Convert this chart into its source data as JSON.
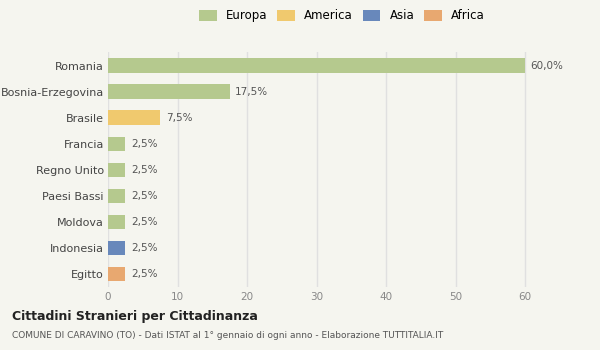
{
  "categories": [
    "Romania",
    "Bosnia-Erzegovina",
    "Brasile",
    "Francia",
    "Regno Unito",
    "Paesi Bassi",
    "Moldova",
    "Indonesia",
    "Egitto"
  ],
  "values": [
    60.0,
    17.5,
    7.5,
    2.5,
    2.5,
    2.5,
    2.5,
    2.5,
    2.5
  ],
  "bar_colors": [
    "#b5c98e",
    "#b5c98e",
    "#f0c96e",
    "#b5c98e",
    "#b5c98e",
    "#b5c98e",
    "#b5c98e",
    "#6888bb",
    "#e8a870"
  ],
  "labels": [
    "60,0%",
    "17,5%",
    "7,5%",
    "2,5%",
    "2,5%",
    "2,5%",
    "2,5%",
    "2,5%",
    "2,5%"
  ],
  "legend_labels": [
    "Europa",
    "America",
    "Asia",
    "Africa"
  ],
  "legend_colors": [
    "#b5c98e",
    "#f0c96e",
    "#6888bb",
    "#e8a870"
  ],
  "xlim": [
    0,
    63
  ],
  "xticks": [
    0,
    10,
    20,
    30,
    40,
    50,
    60
  ],
  "title": "Cittadini Stranieri per Cittadinanza",
  "subtitle": "COMUNE DI CARAVINO (TO) - Dati ISTAT al 1° gennaio di ogni anno - Elaborazione TUTTITALIA.IT",
  "background_color": "#f5f5ef",
  "grid_color": "#e0e0e0",
  "bar_height": 0.55
}
